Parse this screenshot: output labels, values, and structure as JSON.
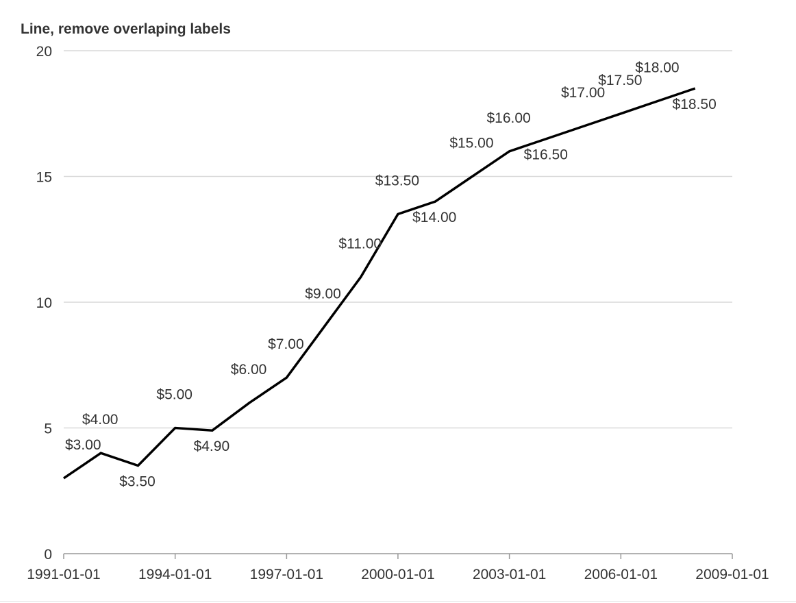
{
  "chart_data": {
    "type": "line",
    "title": "Line, remove overlaping labels",
    "xlabel": "",
    "ylabel": "",
    "x_axis_type": "date",
    "xlim": [
      "1991-01-01",
      "2009-01-01"
    ],
    "ylim": [
      0,
      20
    ],
    "x_ticks": [
      "1991-01-01",
      "1994-01-01",
      "1997-01-01",
      "2000-01-01",
      "2003-01-01",
      "2006-01-01",
      "2009-01-01"
    ],
    "y_ticks": [
      0,
      5,
      10,
      15,
      20
    ],
    "grid": true,
    "legend": "none",
    "series": [
      {
        "color": "#000000",
        "x": [
          "1991-01-01",
          "1992-01-01",
          "1993-01-01",
          "1994-01-01",
          "1995-01-01",
          "1996-01-01",
          "1997-01-01",
          "1998-01-01",
          "1999-01-01",
          "2000-01-01",
          "2001-01-01",
          "2002-01-01",
          "2003-01-01",
          "2004-01-01",
          "2005-01-01",
          "2006-01-01",
          "2007-01-01",
          "2008-01-01"
        ],
        "values": [
          3.0,
          4.0,
          3.5,
          5.0,
          4.9,
          6.0,
          7.0,
          9.0,
          11.0,
          13.5,
          14.0,
          15.0,
          16.0,
          16.5,
          17.0,
          17.5,
          18.0,
          18.5
        ],
        "data_labels": [
          "$3.00",
          "$4.00",
          "$3.50",
          "$5.00",
          "$4.90",
          "$6.00",
          "$7.00",
          "$9.00",
          "$11.00",
          "$13.50",
          "$14.00",
          "$15.00",
          "$16.00",
          "$16.50",
          "$17.00",
          "$17.50",
          "$18.00",
          "$18.50"
        ],
        "data_label_side": [
          "above",
          "above",
          "below",
          "above",
          "below",
          "above",
          "above",
          "above",
          "above",
          "above",
          "below",
          "above",
          "above",
          "below",
          "above",
          "above",
          "above",
          "below"
        ]
      }
    ],
    "colors": {
      "line": "#000000",
      "grid": "#d9d9d9",
      "axis": "#999999",
      "label_text": "#333333"
    }
  }
}
